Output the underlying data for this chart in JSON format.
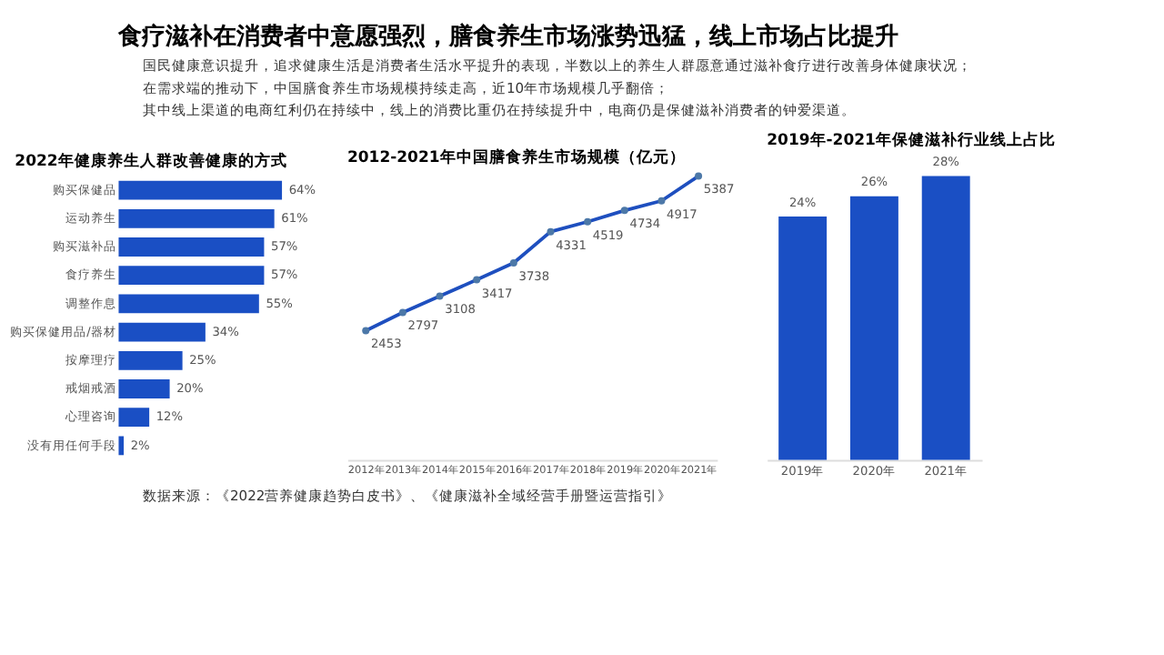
{
  "chart_data": [
    {
      "type": "other",
      "title": "食疗滋补在消费者中意愿强烈，膳食养生市场涨势迅猛，线上市场占比提升",
      "annotations": [
        "国民健康意识提升，追求健康生活是消费者生活水平提升的表现，半数以上的养生人群愿意通过滋补食疗进行改善身体健康状况；",
        "在需求端的推动下，中国膳食养生市场规模持续走高，近10年市场规模几乎翻倍；",
        "其中线上渠道的电商红利仍在持续中，线上的消费比重仍在持续提升中，电商仍是保健滋补消费者的钟爱渠道。"
      ]
    },
    {
      "type": "bar",
      "orientation": "horizontal",
      "title": "2022年健康养生人群改善健康的方式",
      "categories": [
        "购买保健品",
        "运动养生",
        "购买滋补品",
        "食疗养生",
        "调整作息",
        "购买保健用品/器材",
        "按摩理疗",
        "戒烟戒酒",
        "心理咨询",
        "没有用任何手段"
      ],
      "values": [
        64,
        61,
        57,
        57,
        55,
        34,
        25,
        20,
        12,
        2
      ],
      "value_labels": [
        "64%",
        "61%",
        "57%",
        "57%",
        "55%",
        "34%",
        "25%",
        "20%",
        "12%",
        "2%"
      ],
      "color": "#1a4fc4"
    },
    {
      "type": "line",
      "title": "2012-2021年中国膳食养生市场规模（亿元）",
      "categories": [
        "2012年",
        "2013年",
        "2014年",
        "2015年",
        "2016年",
        "2017年",
        "2018年",
        "2019年",
        "2020年",
        "2021年"
      ],
      "values": [
        2453,
        2797,
        3108,
        3417,
        3738,
        4331,
        4519,
        4734,
        4917,
        5387
      ],
      "data_labels": true,
      "marker": "circle",
      "color": "#1e4fbf"
    },
    {
      "type": "bar",
      "title": "2019年-2021年保健滋补行业线上占比",
      "categories": [
        "2019年",
        "2020年",
        "2021年"
      ],
      "values": [
        24,
        26,
        28
      ],
      "value_labels": [
        "24%",
        "26%",
        "28%"
      ],
      "color": "#1a4fc4"
    },
    {
      "type": "other",
      "annotations": [
        "数据来源：《2022营养健康趋势白皮书》、《健康滋补全域经营手册暨运营指引》"
      ]
    }
  ]
}
